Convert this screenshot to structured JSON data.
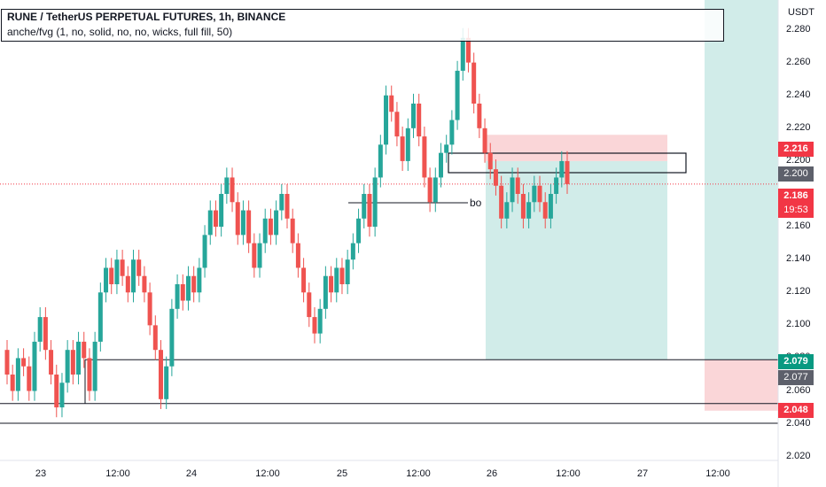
{
  "header": {
    "title": "RUNE / TetherUS PERPETUAL FUTURES, 1h, BINANCE",
    "indicator": "anche/fvg (1, no, solid, no, no, wicks, full fill, 50)"
  },
  "currency": "USDT",
  "price_axis": [
    "2.280",
    "2.260",
    "2.240",
    "2.220",
    "2.200",
    "2.180",
    "2.160",
    "2.140",
    "2.120",
    "2.100",
    "2.080",
    "2.060",
    "2.040",
    "2.020"
  ],
  "time_axis": [
    "23",
    "12:00",
    "24",
    "12:00",
    "25",
    "12:00",
    "26",
    "12:00",
    "27",
    "12:00"
  ],
  "badges": {
    "level_high": "2.216",
    "level_entry": "2.200",
    "last_price": "2.186",
    "countdown": "19:53",
    "level_zone_top": "2.079",
    "level_zone_mid": "2.077",
    "level_low": "2.048"
  },
  "annotation_label": "bo",
  "colors": {
    "up": "#26a69a",
    "down": "#ef5350",
    "profit_zone": "#b2dfdb",
    "loss_zone": "#f8c5c7"
  },
  "chart_data": {
    "type": "candlestick",
    "symbol": "RUNE / TetherUS PERPETUAL FUTURES",
    "interval": "1h",
    "ylim": [
      2.015,
      2.29
    ],
    "x_labels": [
      "23",
      "12:00",
      "24",
      "12:00",
      "25",
      "12:00",
      "26",
      "12:00",
      "27",
      "12:00"
    ],
    "series": [
      {
        "o": 2.085,
        "c": 2.07
      },
      {
        "o": 2.07,
        "c": 2.06
      },
      {
        "o": 2.06,
        "c": 2.08
      },
      {
        "o": 2.08,
        "c": 2.075
      },
      {
        "o": 2.075,
        "c": 2.06
      },
      {
        "o": 2.06,
        "c": 2.09
      },
      {
        "o": 2.09,
        "c": 2.105
      },
      {
        "o": 2.105,
        "c": 2.085
      },
      {
        "o": 2.085,
        "c": 2.07
      },
      {
        "o": 2.07,
        "c": 2.05
      },
      {
        "o": 2.05,
        "c": 2.065
      },
      {
        "o": 2.065,
        "c": 2.085
      },
      {
        "o": 2.085,
        "c": 2.07
      },
      {
        "o": 2.07,
        "c": 2.09
      },
      {
        "o": 2.09,
        "c": 2.08
      },
      {
        "o": 2.08,
        "c": 2.06
      },
      {
        "o": 2.06,
        "c": 2.09
      },
      {
        "o": 2.09,
        "c": 2.12
      },
      {
        "o": 2.12,
        "c": 2.135
      },
      {
        "o": 2.135,
        "c": 2.125
      },
      {
        "o": 2.125,
        "c": 2.14
      },
      {
        "o": 2.14,
        "c": 2.13
      },
      {
        "o": 2.13,
        "c": 2.12
      },
      {
        "o": 2.12,
        "c": 2.14
      },
      {
        "o": 2.14,
        "c": 2.13
      },
      {
        "o": 2.13,
        "c": 2.12
      },
      {
        "o": 2.12,
        "c": 2.1
      },
      {
        "o": 2.1,
        "c": 2.085
      },
      {
        "o": 2.085,
        "c": 2.055
      },
      {
        "o": 2.055,
        "c": 2.075
      },
      {
        "o": 2.075,
        "c": 2.11
      },
      {
        "o": 2.11,
        "c": 2.125
      },
      {
        "o": 2.125,
        "c": 2.115
      },
      {
        "o": 2.115,
        "c": 2.13
      },
      {
        "o": 2.13,
        "c": 2.12
      },
      {
        "o": 2.12,
        "c": 2.135
      },
      {
        "o": 2.135,
        "c": 2.155
      },
      {
        "o": 2.155,
        "c": 2.17
      },
      {
        "o": 2.17,
        "c": 2.16
      },
      {
        "o": 2.16,
        "c": 2.18
      },
      {
        "o": 2.18,
        "c": 2.19
      },
      {
        "o": 2.19,
        "c": 2.175
      },
      {
        "o": 2.175,
        "c": 2.155
      },
      {
        "o": 2.155,
        "c": 2.17
      },
      {
        "o": 2.17,
        "c": 2.15
      },
      {
        "o": 2.15,
        "c": 2.135
      },
      {
        "o": 2.135,
        "c": 2.15
      },
      {
        "o": 2.15,
        "c": 2.165
      },
      {
        "o": 2.165,
        "c": 2.155
      },
      {
        "o": 2.155,
        "c": 2.17
      },
      {
        "o": 2.17,
        "c": 2.18
      },
      {
        "o": 2.18,
        "c": 2.165
      },
      {
        "o": 2.165,
        "c": 2.15
      },
      {
        "o": 2.15,
        "c": 2.135
      },
      {
        "o": 2.135,
        "c": 2.12
      },
      {
        "o": 2.12,
        "c": 2.105
      },
      {
        "o": 2.105,
        "c": 2.095
      },
      {
        "o": 2.095,
        "c": 2.11
      },
      {
        "o": 2.11,
        "c": 2.13
      },
      {
        "o": 2.13,
        "c": 2.12
      },
      {
        "o": 2.12,
        "c": 2.135
      },
      {
        "o": 2.135,
        "c": 2.125
      },
      {
        "o": 2.125,
        "c": 2.14
      },
      {
        "o": 2.14,
        "c": 2.15
      },
      {
        "o": 2.15,
        "c": 2.165
      },
      {
        "o": 2.165,
        "c": 2.18
      },
      {
        "o": 2.18,
        "c": 2.16
      },
      {
        "o": 2.16,
        "c": 2.19
      },
      {
        "o": 2.19,
        "c": 2.21
      },
      {
        "o": 2.21,
        "c": 2.24
      },
      {
        "o": 2.24,
        "c": 2.23
      },
      {
        "o": 2.23,
        "c": 2.215
      },
      {
        "o": 2.215,
        "c": 2.2
      },
      {
        "o": 2.2,
        "c": 2.22
      },
      {
        "o": 2.22,
        "c": 2.235
      },
      {
        "o": 2.235,
        "c": 2.215
      },
      {
        "o": 2.215,
        "c": 2.19
      },
      {
        "o": 2.19,
        "c": 2.175
      },
      {
        "o": 2.175,
        "c": 2.19
      },
      {
        "o": 2.19,
        "c": 2.205
      },
      {
        "o": 2.205,
        "c": 2.21
      },
      {
        "o": 2.21,
        "c": 2.225
      },
      {
        "o": 2.225,
        "c": 2.255
      },
      {
        "o": 2.255,
        "c": 2.275
      },
      {
        "o": 2.275,
        "c": 2.26
      },
      {
        "o": 2.26,
        "c": 2.235
      },
      {
        "o": 2.235,
        "c": 2.22
      },
      {
        "o": 2.22,
        "c": 2.205
      },
      {
        "o": 2.205,
        "c": 2.195
      },
      {
        "o": 2.195,
        "c": 2.185
      },
      {
        "o": 2.185,
        "c": 2.165
      },
      {
        "o": 2.165,
        "c": 2.175
      },
      {
        "o": 2.175,
        "c": 2.19
      },
      {
        "o": 2.19,
        "c": 2.18
      },
      {
        "o": 2.18,
        "c": 2.165
      },
      {
        "o": 2.165,
        "c": 2.175
      },
      {
        "o": 2.175,
        "c": 2.185
      },
      {
        "o": 2.185,
        "c": 2.175
      },
      {
        "o": 2.175,
        "c": 2.165
      },
      {
        "o": 2.165,
        "c": 2.18
      },
      {
        "o": 2.18,
        "c": 2.19
      },
      {
        "o": 2.19,
        "c": 2.2
      },
      {
        "o": 2.2,
        "c": 2.186
      }
    ],
    "levels": {
      "tp_zone_top": 2.2,
      "tp_zone_bottom": 2.079,
      "sl_zone_top": 2.216,
      "entry": 2.2,
      "last": 2.186,
      "box_top": 2.079,
      "box_bottom": 2.048
    }
  }
}
